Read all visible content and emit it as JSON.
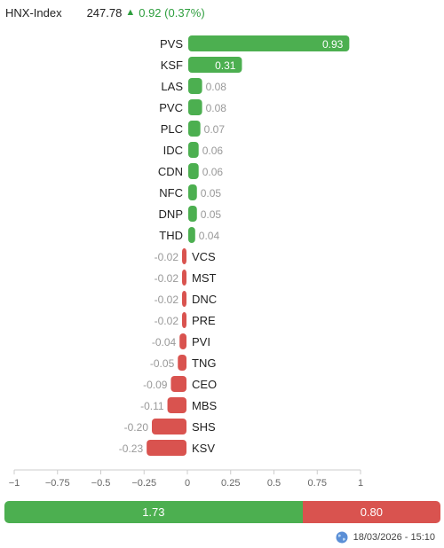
{
  "header": {
    "index_name": "HNX-Index",
    "index_value": "247.78",
    "change": "0.92 (0.37%)",
    "direction_icon": "up-triangle-icon",
    "change_color": "#2e9e3e"
  },
  "chart_data": {
    "type": "bar",
    "orientation": "horizontal",
    "categories": [
      "PVS",
      "KSF",
      "LAS",
      "PVC",
      "PLC",
      "IDC",
      "CDN",
      "NFC",
      "DNP",
      "THD",
      "VCS",
      "MST",
      "DNC",
      "PRE",
      "PVI",
      "TNG",
      "CEO",
      "MBS",
      "SHS",
      "KSV"
    ],
    "values": [
      0.93,
      0.31,
      0.08,
      0.08,
      0.07,
      0.06,
      0.06,
      0.05,
      0.05,
      0.04,
      -0.02,
      -0.02,
      -0.02,
      -0.02,
      -0.04,
      -0.05,
      -0.09,
      -0.11,
      -0.2,
      -0.23
    ],
    "value_labels": [
      "0.93",
      "0.31",
      "0.08",
      "0.08",
      "0.07",
      "0.06",
      "0.06",
      "0.05",
      "0.05",
      "0.04",
      "-0.02",
      "-0.02",
      "-0.02",
      "-0.02",
      "-0.04",
      "-0.05",
      "-0.09",
      "-0.11",
      "-0.20",
      "-0.23"
    ],
    "xlim": [
      -1,
      1
    ],
    "xticks": [
      -1,
      -0.75,
      -0.5,
      -0.25,
      0,
      0.25,
      0.5,
      0.75,
      1
    ],
    "xtick_labels": [
      "−1",
      "−0.75",
      "−0.5",
      "−0.25",
      "0",
      "0.25",
      "0.5",
      "0.75",
      "1"
    ],
    "grid": false,
    "colors": {
      "positive": "#4caf50",
      "negative": "#d9534f"
    }
  },
  "summary": {
    "positive_total": "1.73",
    "negative_total": "0.80",
    "positive_value": 1.73,
    "negative_value": 0.8
  },
  "footer": {
    "timestamp": "18/03/2026 - 15:10",
    "icon": "globe-icon"
  }
}
